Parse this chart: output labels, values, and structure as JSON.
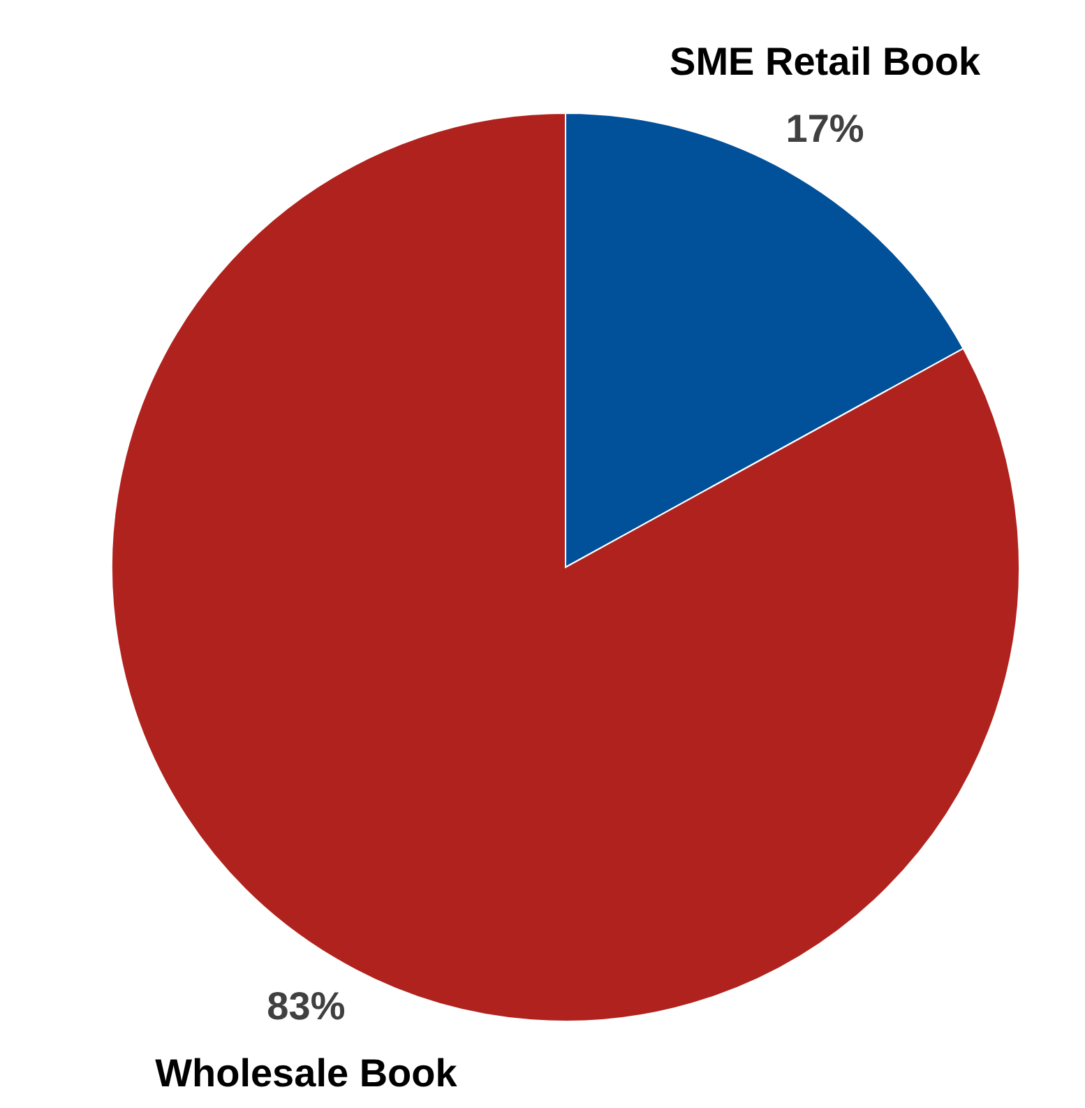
{
  "chart_data": {
    "type": "pie",
    "categories": [
      "SME Retail Book",
      "Wholesale Book"
    ],
    "values": [
      17,
      83
    ],
    "colors": [
      "#00509a",
      "#b0221d"
    ],
    "value_labels": [
      "17%",
      "83%"
    ],
    "legend": false
  }
}
